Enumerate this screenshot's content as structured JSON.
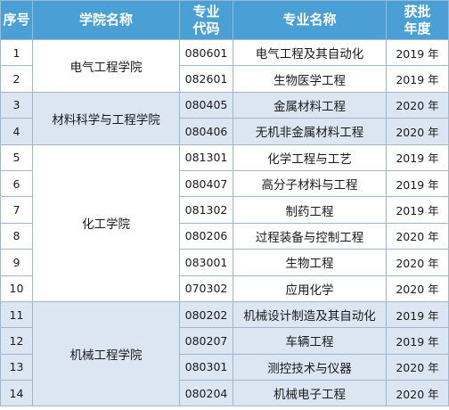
{
  "headers": {
    "seq": "序号",
    "college": "学院名称",
    "code_line1": "专业",
    "code_line2": "代码",
    "major": "专业名称",
    "year_line1": "获批",
    "year_line2": "年度"
  },
  "rows": [
    {
      "seq": "1",
      "college": "电气工程学院",
      "code": "080601",
      "major": "电气工程及其自动化",
      "year": "2019 年"
    },
    {
      "seq": "2",
      "college": "电气工程学院",
      "code": "082601",
      "major": "生物医学工程",
      "year": "2019 年"
    },
    {
      "seq": "3",
      "college": "材料科学与工程学院",
      "code": "080405",
      "major": "金属材料工程",
      "year": "2020 年"
    },
    {
      "seq": "4",
      "college": "材料科学与工程学院",
      "code": "080406",
      "major": "无机非金属材料工程",
      "year": "2020 年"
    },
    {
      "seq": "5",
      "college": "化工学院",
      "code": "081301",
      "major": "化学工程与工艺",
      "year": "2019 年"
    },
    {
      "seq": "6",
      "college": "化工学院",
      "code": "080407",
      "major": "高分子材料与工程",
      "year": "2019 年"
    },
    {
      "seq": "7",
      "college": "化工学院",
      "code": "081302",
      "major": "制药工程",
      "year": "2019 年"
    },
    {
      "seq": "8",
      "college": "化工学院",
      "code": "080206",
      "major": "过程装备与控制工程",
      "year": "2020 年"
    },
    {
      "seq": "9",
      "college": "化工学院",
      "code": "083001",
      "major": "生物工程",
      "year": "2020 年"
    },
    {
      "seq": "10",
      "college": "化工学院",
      "code": "070302",
      "major": "应用化学",
      "year": "2020 年"
    },
    {
      "seq": "11",
      "college": "机械工程学院",
      "code": "080202",
      "major": "机械设计制造及其自动化",
      "year": "2019 年"
    },
    {
      "seq": "12",
      "college": "机械工程学院",
      "code": "080207",
      "major": "车辆工程",
      "year": "2019 年"
    },
    {
      "seq": "13",
      "college": "机械工程学院",
      "code": "080301",
      "major": "测控技术与仪器",
      "year": "2020 年"
    },
    {
      "seq": "14",
      "college": "机械工程学院",
      "code": "080204",
      "major": "机械电子工程",
      "year": "2020 年"
    }
  ],
  "colors": {
    "header_bg": "#4aa0d4",
    "header_text": "#ffffff",
    "shade_bg": "#dbe6f2",
    "border": "#9eb6ce"
  }
}
